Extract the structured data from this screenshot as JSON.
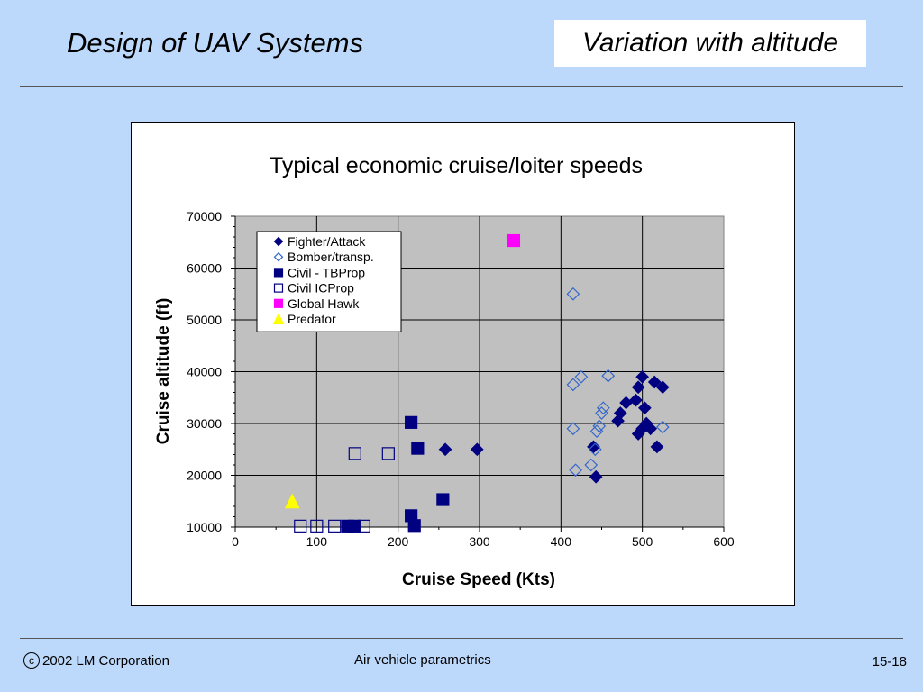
{
  "slide": {
    "title": "Design of UAV Systems",
    "section": "Variation with altitude"
  },
  "footer": {
    "copyright_symbol": "c",
    "copyright": "2002 LM Corporation",
    "topic": "Air vehicle parametrics",
    "page": "15-18"
  },
  "chart_data": {
    "type": "scatter",
    "title": "Typical economic cruise/loiter speeds",
    "xlabel": "Cruise Speed (Kts)",
    "ylabel": "Cruise altitude (ft)",
    "xlim": [
      0,
      600
    ],
    "ylim": [
      10000,
      70000
    ],
    "xticks": [
      0,
      100,
      200,
      300,
      400,
      500,
      600
    ],
    "yticks": [
      10000,
      20000,
      30000,
      40000,
      50000,
      60000,
      70000
    ],
    "grid": true,
    "plot_background": "#c0c0c0",
    "legend_position": "upper-left",
    "series": [
      {
        "name": "Fighter/Attack",
        "marker": "diamond",
        "filled": true,
        "color": "#000080",
        "points": [
          [
            258,
            25000
          ],
          [
            297,
            25000
          ],
          [
            440,
            25500
          ],
          [
            443,
            19700
          ],
          [
            470,
            30500
          ],
          [
            473,
            32000
          ],
          [
            480,
            34000
          ],
          [
            492,
            34500
          ],
          [
            495,
            37000
          ],
          [
            500,
            39000
          ],
          [
            495,
            28000
          ],
          [
            500,
            29000
          ],
          [
            503,
            33000
          ],
          [
            505,
            30000
          ],
          [
            510,
            29000
          ],
          [
            515,
            38000
          ],
          [
            518,
            25500
          ],
          [
            525,
            37000
          ]
        ]
      },
      {
        "name": "Bomber/transp.",
        "marker": "diamond",
        "filled": false,
        "color": "#3366cc",
        "points": [
          [
            415,
            55000
          ],
          [
            425,
            39000
          ],
          [
            415,
            37500
          ],
          [
            458,
            39200
          ],
          [
            452,
            33000
          ],
          [
            450,
            32000
          ],
          [
            447,
            29500
          ],
          [
            444,
            28500
          ],
          [
            415,
            29000
          ],
          [
            437,
            22000
          ],
          [
            418,
            21000
          ],
          [
            442,
            25000
          ],
          [
            525,
            29300
          ]
        ]
      },
      {
        "name": "Civil - TBProp",
        "marker": "square",
        "filled": true,
        "color": "#000080",
        "points": [
          [
            216,
            30200
          ],
          [
            224,
            25200
          ],
          [
            255,
            15300
          ],
          [
            216,
            12200
          ],
          [
            220,
            10300
          ],
          [
            138,
            10200
          ],
          [
            146,
            10200
          ]
        ]
      },
      {
        "name": "Civil ICProp",
        "marker": "square",
        "filled": false,
        "color": "#000080",
        "points": [
          [
            147,
            24200
          ],
          [
            188,
            24200
          ],
          [
            80,
            10200
          ],
          [
            100,
            10200
          ],
          [
            122,
            10200
          ],
          [
            158,
            10200
          ]
        ]
      },
      {
        "name": "Global Hawk",
        "marker": "square",
        "filled": true,
        "color": "#ff00ff",
        "points": [
          [
            342,
            65300
          ]
        ]
      },
      {
        "name": "Predator",
        "marker": "triangle",
        "filled": true,
        "color": "#ffff00",
        "points": [
          [
            70,
            15000
          ]
        ]
      }
    ]
  }
}
